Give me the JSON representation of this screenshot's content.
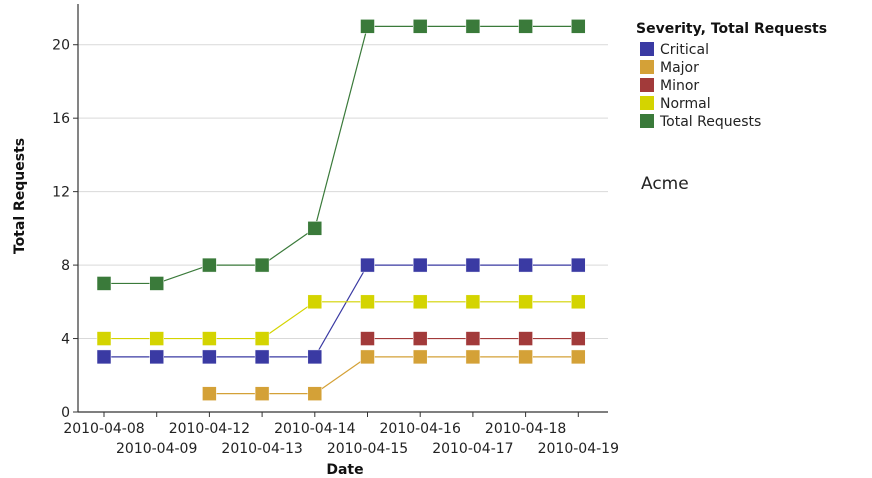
{
  "chart_data": {
    "type": "line",
    "xlabel": "Date",
    "ylabel": "Total Requests",
    "x": [
      "2010-04-08",
      "2010-04-09",
      "2010-04-12",
      "2010-04-13",
      "2010-04-14",
      "2010-04-15",
      "2010-04-16",
      "2010-04-17",
      "2010-04-18",
      "2010-04-19"
    ],
    "ylim": [
      0,
      22
    ],
    "yticks": [
      0,
      4,
      8,
      12,
      16,
      20
    ],
    "grid": true,
    "legend": {
      "title": "Severity, Total Requests",
      "placement": "right"
    },
    "annotation": "Acme",
    "series": [
      {
        "name": "Critical",
        "color": "#3a3aa3",
        "values": [
          3,
          3,
          3,
          3,
          3,
          8,
          8,
          8,
          8,
          8
        ]
      },
      {
        "name": "Major",
        "color": "#d4a137",
        "values": [
          null,
          null,
          1,
          1,
          1,
          3,
          3,
          3,
          3,
          3
        ]
      },
      {
        "name": "Minor",
        "color": "#a23a3a",
        "values": [
          null,
          null,
          null,
          null,
          null,
          4,
          4,
          4,
          4,
          4
        ]
      },
      {
        "name": "Normal",
        "color": "#d4d400",
        "values": [
          4,
          4,
          4,
          4,
          6,
          6,
          6,
          6,
          6,
          6
        ]
      },
      {
        "name": "Total Requests",
        "color": "#3a7a3a",
        "values": [
          7,
          7,
          8,
          8,
          10,
          21,
          21,
          21,
          21,
          21
        ]
      }
    ]
  }
}
